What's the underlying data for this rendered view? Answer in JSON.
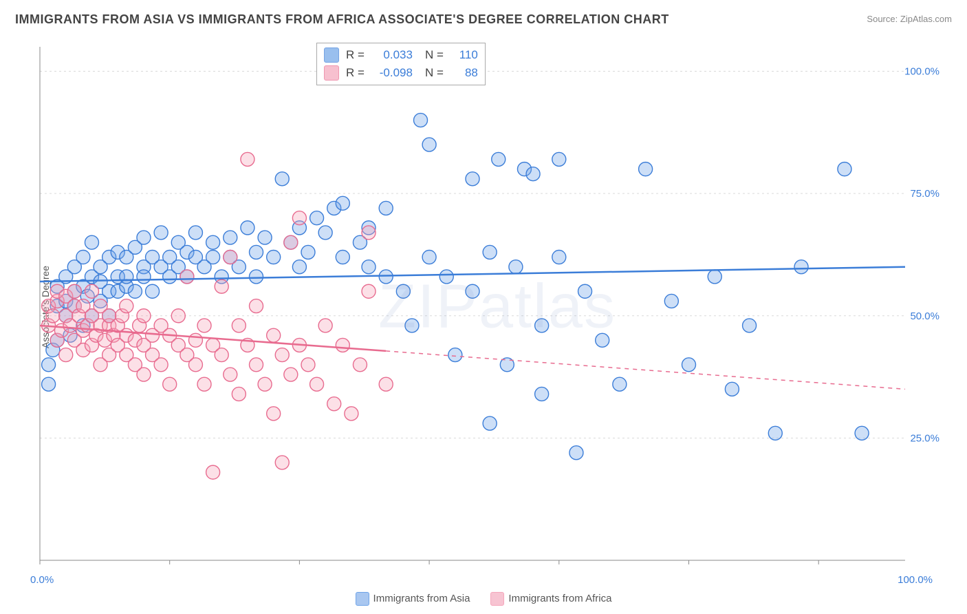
{
  "title": "IMMIGRANTS FROM ASIA VS IMMIGRANTS FROM AFRICA ASSOCIATE'S DEGREE CORRELATION CHART",
  "source_label": "Source:",
  "source_name": "ZipAtlas.com",
  "watermark": "ZIPatlas",
  "y_axis_label": "Associate's Degree",
  "chart": {
    "type": "scatter",
    "xlim": [
      0,
      100
    ],
    "ylim": [
      0,
      105
    ],
    "x_ticks": [
      0,
      100
    ],
    "x_tick_labels": [
      "0.0%",
      "100.0%"
    ],
    "y_ticks": [
      25,
      50,
      75,
      100
    ],
    "y_tick_labels": [
      "25.0%",
      "50.0%",
      "75.0%",
      "100.0%"
    ],
    "y_tick_color": "#3b7dd8",
    "x_tick_color": "#3b7dd8",
    "grid_color": "#d9d9d9",
    "axis_line_color": "#888888",
    "background_color": "#ffffff",
    "marker_radius": 10,
    "marker_stroke_width": 1.4,
    "marker_fill_opacity": 0.35,
    "line_width": 2.5,
    "dash_pattern": "6 6",
    "title_fontsize": 18,
    "label_fontsize": 14,
    "tick_fontsize": 15,
    "x_minor_ticks": [
      0,
      15,
      30,
      45,
      60,
      75,
      90
    ]
  },
  "series": [
    {
      "name": "Immigrants from Asia",
      "color": "#6fa4e8",
      "stroke": "#3b7dd8",
      "R": "0.033",
      "N": "110",
      "trend": {
        "y0": 57,
        "y1": 60,
        "solid_x_end": 100
      },
      "points": [
        [
          1,
          36
        ],
        [
          1,
          40
        ],
        [
          1.5,
          43
        ],
        [
          2,
          45
        ],
        [
          2,
          52
        ],
        [
          2,
          56
        ],
        [
          3,
          50
        ],
        [
          3,
          53
        ],
        [
          3,
          58
        ],
        [
          3.5,
          46
        ],
        [
          4,
          55
        ],
        [
          4,
          60
        ],
        [
          4,
          52
        ],
        [
          5,
          56
        ],
        [
          5,
          48
        ],
        [
          5,
          62
        ],
        [
          5.5,
          54
        ],
        [
          6,
          58
        ],
        [
          6,
          50
        ],
        [
          6,
          65
        ],
        [
          7,
          53
        ],
        [
          7,
          60
        ],
        [
          7,
          57
        ],
        [
          8,
          55
        ],
        [
          8,
          62
        ],
        [
          8,
          50
        ],
        [
          9,
          58
        ],
        [
          9,
          55
        ],
        [
          9,
          63
        ],
        [
          10,
          56
        ],
        [
          10,
          62
        ],
        [
          10,
          58
        ],
        [
          11,
          55
        ],
        [
          11,
          64
        ],
        [
          12,
          60
        ],
        [
          12,
          66
        ],
        [
          12,
          58
        ],
        [
          13,
          62
        ],
        [
          13,
          55
        ],
        [
          14,
          60
        ],
        [
          14,
          67
        ],
        [
          15,
          58
        ],
        [
          15,
          62
        ],
        [
          16,
          60
        ],
        [
          16,
          65
        ],
        [
          17,
          63
        ],
        [
          17,
          58
        ],
        [
          18,
          62
        ],
        [
          18,
          67
        ],
        [
          19,
          60
        ],
        [
          20,
          65
        ],
        [
          20,
          62
        ],
        [
          21,
          58
        ],
        [
          22,
          66
        ],
        [
          22,
          62
        ],
        [
          23,
          60
        ],
        [
          24,
          68
        ],
        [
          25,
          63
        ],
        [
          25,
          58
        ],
        [
          26,
          66
        ],
        [
          27,
          62
        ],
        [
          28,
          78
        ],
        [
          29,
          65
        ],
        [
          30,
          60
        ],
        [
          30,
          68
        ],
        [
          31,
          63
        ],
        [
          32,
          70
        ],
        [
          33,
          67
        ],
        [
          34,
          72
        ],
        [
          35,
          62
        ],
        [
          35,
          73
        ],
        [
          37,
          65
        ],
        [
          38,
          60
        ],
        [
          38,
          68
        ],
        [
          40,
          58
        ],
        [
          40,
          72
        ],
        [
          42,
          55
        ],
        [
          43,
          48
        ],
        [
          44,
          90
        ],
        [
          45,
          62
        ],
        [
          45,
          85
        ],
        [
          47,
          58
        ],
        [
          48,
          42
        ],
        [
          50,
          55
        ],
        [
          50,
          78
        ],
        [
          52,
          63
        ],
        [
          52,
          28
        ],
        [
          53,
          82
        ],
        [
          54,
          40
        ],
        [
          55,
          60
        ],
        [
          56,
          80
        ],
        [
          57,
          79
        ],
        [
          58,
          48
        ],
        [
          58,
          34
        ],
        [
          60,
          62
        ],
        [
          60,
          82
        ],
        [
          62,
          22
        ],
        [
          63,
          55
        ],
        [
          65,
          45
        ],
        [
          67,
          36
        ],
        [
          70,
          80
        ],
        [
          73,
          53
        ],
        [
          75,
          40
        ],
        [
          78,
          58
        ],
        [
          80,
          35
        ],
        [
          82,
          48
        ],
        [
          85,
          26
        ],
        [
          88,
          60
        ],
        [
          93,
          80
        ],
        [
          95,
          26
        ]
      ]
    },
    {
      "name": "Immigrants from Africa",
      "color": "#f5a6bb",
      "stroke": "#e86b8f",
      "R": "-0.098",
      "N": "88",
      "trend": {
        "y0": 48,
        "y1": 35,
        "solid_x_end": 40
      },
      "points": [
        [
          1,
          48
        ],
        [
          1,
          52
        ],
        [
          1.5,
          50
        ],
        [
          2,
          45
        ],
        [
          2,
          53
        ],
        [
          2,
          55
        ],
        [
          2.5,
          47
        ],
        [
          3,
          50
        ],
        [
          3,
          54
        ],
        [
          3,
          42
        ],
        [
          3.5,
          48
        ],
        [
          4,
          52
        ],
        [
          4,
          45
        ],
        [
          4,
          55
        ],
        [
          4.5,
          50
        ],
        [
          5,
          47
        ],
        [
          5,
          43
        ],
        [
          5,
          52
        ],
        [
          5.5,
          48
        ],
        [
          6,
          50
        ],
        [
          6,
          44
        ],
        [
          6,
          55
        ],
        [
          6.5,
          46
        ],
        [
          7,
          48
        ],
        [
          7,
          52
        ],
        [
          7,
          40
        ],
        [
          7.5,
          45
        ],
        [
          8,
          48
        ],
        [
          8,
          42
        ],
        [
          8,
          50
        ],
        [
          8.5,
          46
        ],
        [
          9,
          44
        ],
        [
          9,
          48
        ],
        [
          9.5,
          50
        ],
        [
          10,
          42
        ],
        [
          10,
          46
        ],
        [
          10,
          52
        ],
        [
          11,
          45
        ],
        [
          11,
          40
        ],
        [
          11.5,
          48
        ],
        [
          12,
          44
        ],
        [
          12,
          50
        ],
        [
          12,
          38
        ],
        [
          13,
          46
        ],
        [
          13,
          42
        ],
        [
          14,
          48
        ],
        [
          14,
          40
        ],
        [
          15,
          46
        ],
        [
          15,
          36
        ],
        [
          16,
          44
        ],
        [
          16,
          50
        ],
        [
          17,
          42
        ],
        [
          17,
          58
        ],
        [
          18,
          45
        ],
        [
          18,
          40
        ],
        [
          19,
          48
        ],
        [
          19,
          36
        ],
        [
          20,
          44
        ],
        [
          20,
          18
        ],
        [
          21,
          42
        ],
        [
          21,
          56
        ],
        [
          22,
          38
        ],
        [
          22,
          62
        ],
        [
          23,
          48
        ],
        [
          23,
          34
        ],
        [
          24,
          44
        ],
        [
          24,
          82
        ],
        [
          25,
          40
        ],
        [
          25,
          52
        ],
        [
          26,
          36
        ],
        [
          27,
          46
        ],
        [
          27,
          30
        ],
        [
          28,
          42
        ],
        [
          28,
          20
        ],
        [
          29,
          38
        ],
        [
          29,
          65
        ],
        [
          30,
          44
        ],
        [
          30,
          70
        ],
        [
          31,
          40
        ],
        [
          32,
          36
        ],
        [
          33,
          48
        ],
        [
          34,
          32
        ],
        [
          35,
          44
        ],
        [
          36,
          30
        ],
        [
          37,
          40
        ],
        [
          38,
          55
        ],
        [
          38,
          67
        ],
        [
          40,
          36
        ]
      ]
    }
  ],
  "bottom_legend": [
    {
      "label": "Immigrants from Asia",
      "fill": "#a9c7f0",
      "stroke": "#6fa4e8"
    },
    {
      "label": "Immigrants from Africa",
      "fill": "#f7c4d2",
      "stroke": "#f5a6bb"
    }
  ],
  "stats_legend_labels": {
    "R": "R =",
    "N": "N ="
  }
}
